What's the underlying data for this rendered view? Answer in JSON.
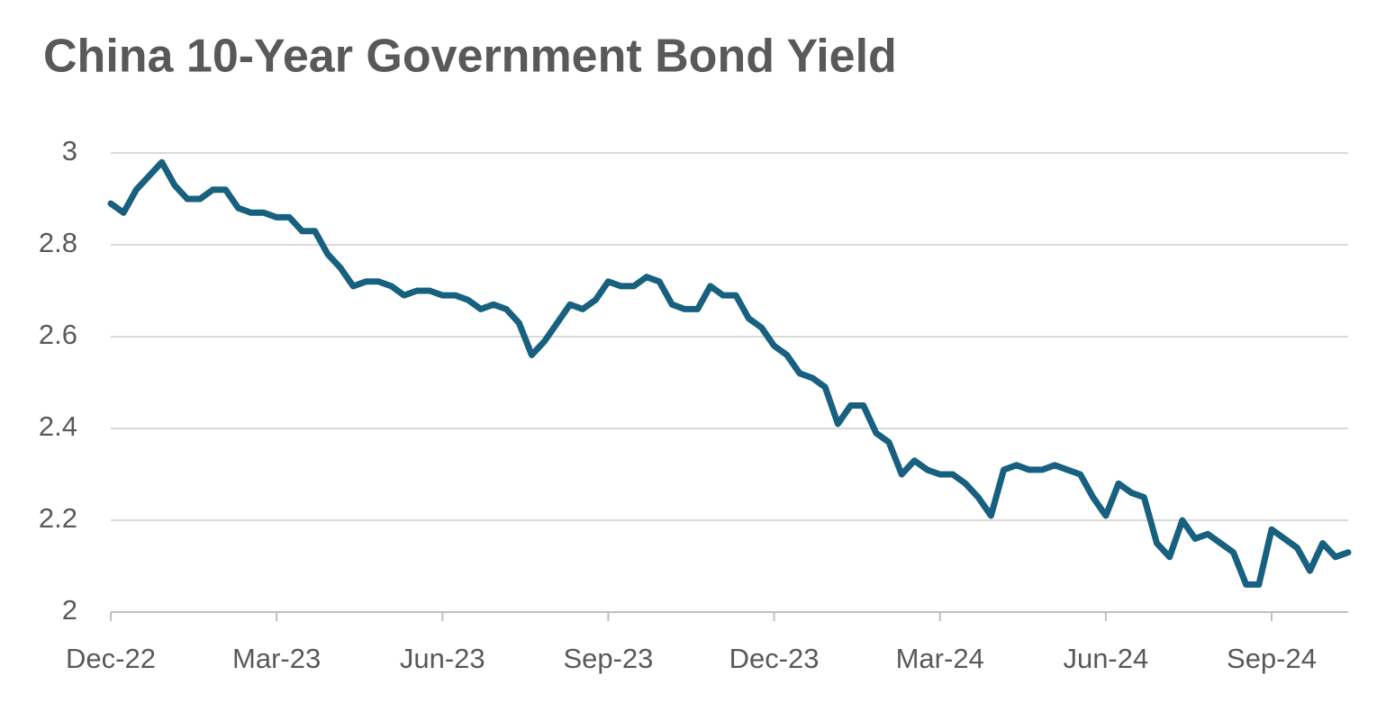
{
  "chart_data": {
    "type": "line",
    "title": "China 10-Year Government Bond Yield",
    "categories": [
      "Dec-22",
      null,
      null,
      null,
      null,
      null,
      null,
      null,
      null,
      null,
      null,
      null,
      null,
      "Mar-23",
      null,
      null,
      null,
      null,
      null,
      null,
      null,
      null,
      null,
      null,
      null,
      null,
      "Jun-23",
      null,
      null,
      null,
      null,
      null,
      null,
      null,
      null,
      null,
      null,
      null,
      null,
      "Sep-23",
      null,
      null,
      null,
      null,
      null,
      null,
      null,
      null,
      null,
      null,
      null,
      null,
      "Dec-23",
      null,
      null,
      null,
      null,
      null,
      null,
      null,
      null,
      null,
      null,
      null,
      null,
      "Mar-24",
      null,
      null,
      null,
      null,
      null,
      null,
      null,
      null,
      null,
      null,
      null,
      null,
      "Jun-24",
      null,
      null,
      null,
      null,
      null,
      null,
      null,
      null,
      null,
      null,
      null,
      null,
      "Sep-24",
      null,
      null,
      null,
      null,
      null,
      null
    ],
    "series": [
      {
        "name": "China 10-Year Government Bond Yield",
        "color": "#17607f",
        "values": [
          2.89,
          2.87,
          2.92,
          2.95,
          2.98,
          2.93,
          2.9,
          2.9,
          2.92,
          2.92,
          2.88,
          2.87,
          2.87,
          2.86,
          2.86,
          2.83,
          2.83,
          2.78,
          2.75,
          2.71,
          2.72,
          2.72,
          2.71,
          2.69,
          2.7,
          2.7,
          2.69,
          2.69,
          2.68,
          2.66,
          2.67,
          2.66,
          2.63,
          2.56,
          2.59,
          2.63,
          2.67,
          2.66,
          2.68,
          2.72,
          2.71,
          2.71,
          2.73,
          2.72,
          2.67,
          2.66,
          2.66,
          2.71,
          2.69,
          2.69,
          2.64,
          2.62,
          2.58,
          2.56,
          2.52,
          2.51,
          2.49,
          2.41,
          2.45,
          2.45,
          2.39,
          2.37,
          2.3,
          2.33,
          2.31,
          2.3,
          2.3,
          2.28,
          2.25,
          2.21,
          2.31,
          2.32,
          2.31,
          2.31,
          2.32,
          2.31,
          2.3,
          2.25,
          2.21,
          2.28,
          2.26,
          2.25,
          2.15,
          2.12,
          2.2,
          2.16,
          2.17,
          2.15,
          2.13,
          2.06,
          2.06,
          2.18,
          2.16,
          2.14,
          2.09,
          2.15,
          2.12,
          2.13
        ]
      }
    ],
    "ylim": [
      2,
      3
    ],
    "yticks": [
      2,
      2.2,
      2.4,
      2.6,
      2.8,
      3
    ],
    "grid": true
  }
}
